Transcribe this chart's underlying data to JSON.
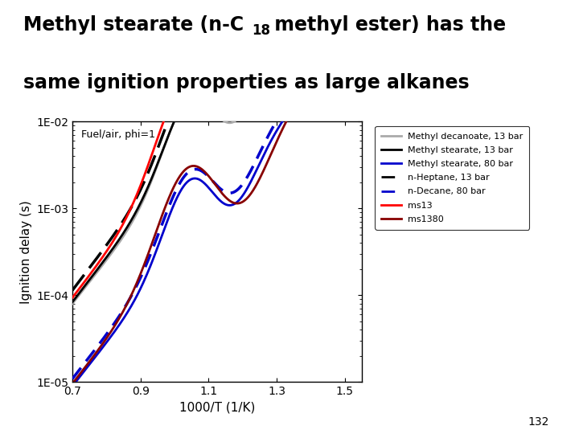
{
  "xlabel": "1000/T (1/K)",
  "ylabel": "Ignition delay (s)",
  "annotation": "Fuel/air, phi=1",
  "xlim": [
    0.7,
    1.55
  ],
  "xticks": [
    0.7,
    0.9,
    1.1,
    1.3,
    1.5
  ],
  "ytick_labels": [
    "1E-05",
    "1E-04",
    "1E-03",
    "1E-02"
  ],
  "ytick_vals": [
    1e-05,
    0.0001,
    0.001,
    0.01
  ],
  "page_number": "132",
  "legend_entries": [
    {
      "label": "Methyl decanoate, 13 bar",
      "color": "#aaaaaa",
      "lw": 2,
      "ls": "solid"
    },
    {
      "label": "Methyl stearate, 13 bar",
      "color": "#000000",
      "lw": 2,
      "ls": "solid"
    },
    {
      "label": "Methyl stearate, 80 bar",
      "color": "#0000cc",
      "lw": 2,
      "ls": "solid"
    },
    {
      "label": "n-Heptane, 13 bar",
      "color": "#000000",
      "lw": 2,
      "ls": "dashed"
    },
    {
      "label": "n-Decane, 80 bar",
      "color": "#0000cc",
      "lw": 2,
      "ls": "dashed"
    },
    {
      "label": "ms13",
      "color": "#ff0000",
      "lw": 2,
      "ls": "solid"
    },
    {
      "label": "ms1380",
      "color": "#880000",
      "lw": 2,
      "ls": "solid"
    }
  ]
}
